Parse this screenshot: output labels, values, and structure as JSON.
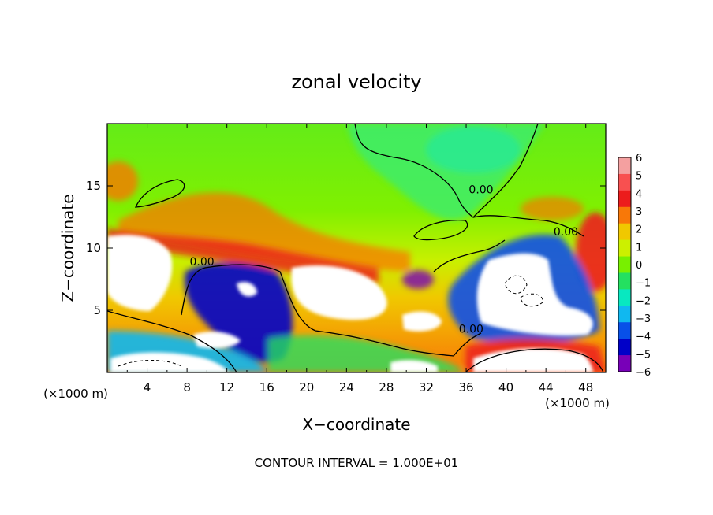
{
  "chart_data": {
    "type": "heatmap",
    "title": "zonal velocity",
    "xlabel": "X−coordinate",
    "ylabel": "Z−coordinate",
    "x_unit_left": "(×1000 m)",
    "x_unit_right": "(×1000 m)",
    "footer": "CONTOUR INTERVAL = 1.000E+01",
    "xlim": [
      0,
      50
    ],
    "ylim": [
      0,
      20
    ],
    "x_ticks": [
      4,
      8,
      12,
      16,
      20,
      24,
      28,
      32,
      36,
      40,
      44,
      48
    ],
    "x_tick_labels": [
      "4",
      "8",
      "12",
      "16",
      "20",
      "24",
      "28",
      "32",
      "36",
      "40",
      "44",
      "48"
    ],
    "y_ticks": [
      5,
      10,
      15
    ],
    "y_tick_labels": [
      "5",
      "10",
      "15"
    ],
    "colorbar": {
      "values": [
        6,
        5,
        4,
        3,
        2,
        1,
        0,
        -1,
        -2,
        -3,
        -4,
        -5,
        -6
      ],
      "labels": [
        "6",
        "5",
        "4",
        "3",
        "2",
        "1",
        "0",
        "−1",
        "−2",
        "−3",
        "−4",
        "−5",
        "−6"
      ],
      "colors": [
        "#f4a0a0",
        "#f85050",
        "#ec1c1c",
        "#f87808",
        "#f0c800",
        "#ccf000",
        "#78f000",
        "#24e060",
        "#08e8c0",
        "#10b8f0",
        "#0850e8",
        "#0000c8",
        "#7800b8"
      ]
    },
    "over_range_color": "#ffffff",
    "contour_labels": [
      {
        "text": "0.00",
        "x": 9.5,
        "y": 8.6
      },
      {
        "text": "0.00",
        "x": 37.5,
        "y": 14.4
      },
      {
        "text": "0.00",
        "x": 46.0,
        "y": 11.0
      },
      {
        "text": "0.00",
        "x": 36.5,
        "y": 3.2
      }
    ]
  }
}
